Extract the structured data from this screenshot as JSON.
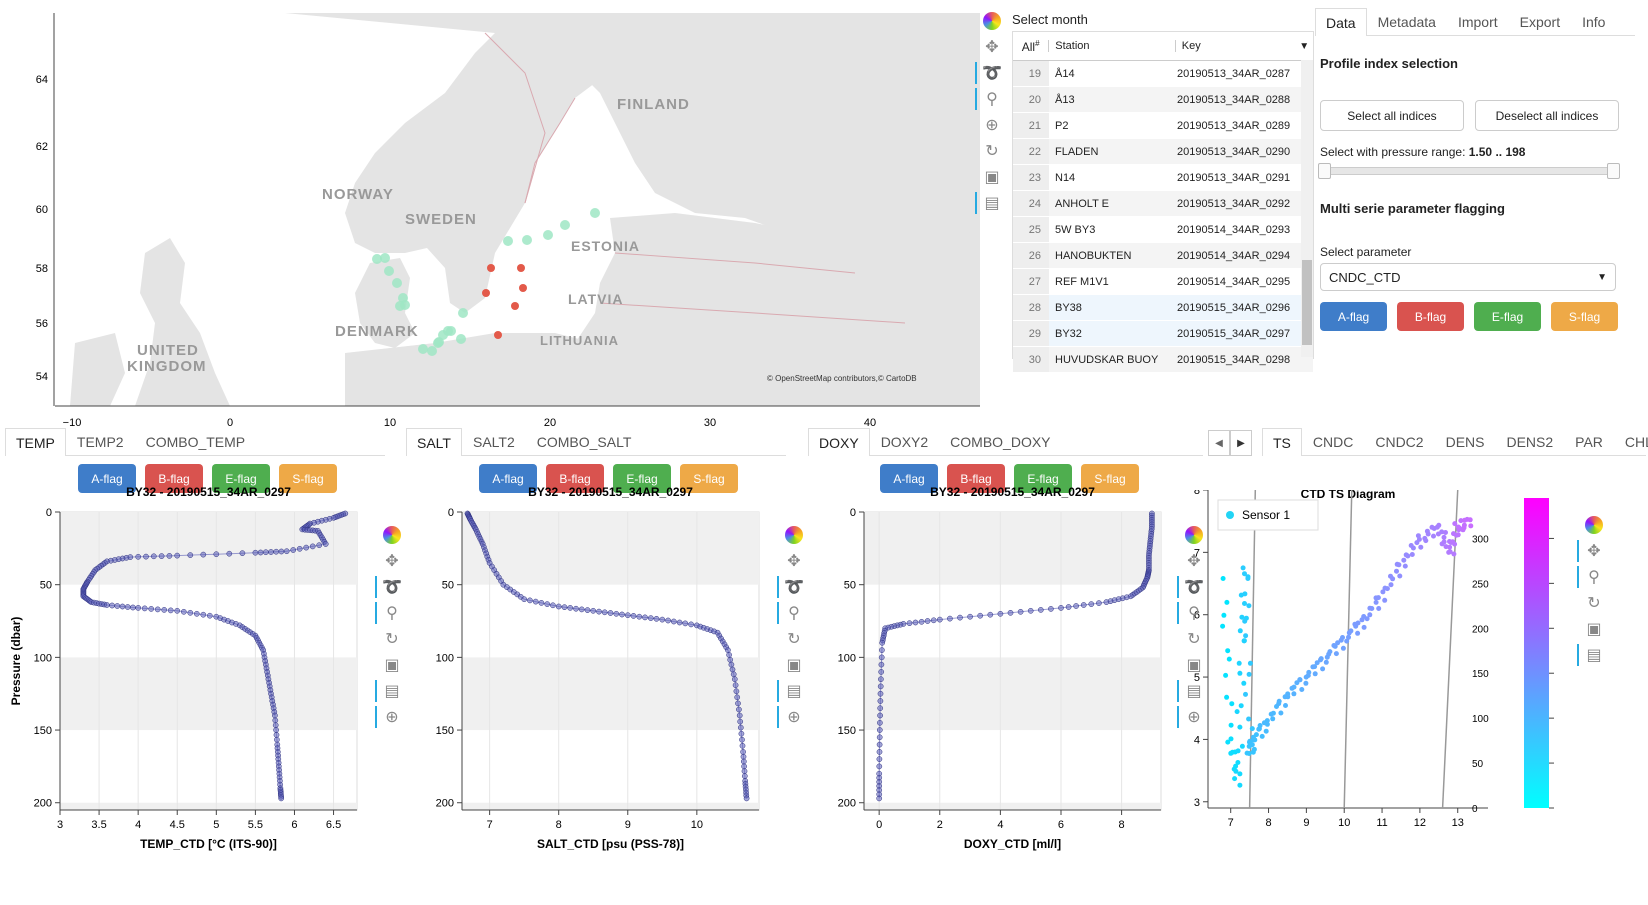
{
  "map": {
    "countries": [
      "FINLAND",
      "NORWAY",
      "SWEDEN",
      "ESTONIA",
      "LATVIA",
      "DENMARK",
      "LITHUANIA",
      "UNITED",
      "KINGDOM"
    ],
    "y_ticks": [
      "64",
      "62",
      "60",
      "58",
      "56",
      "54"
    ],
    "x_ticks": [
      "−10",
      "0",
      "10",
      "20",
      "30",
      "40"
    ],
    "attribution": "© OpenStreetMap contributors,© CartoDB",
    "land_color": "#e4e4e4",
    "sea_color": "#ffffff",
    "green_color": "#9fe6c4",
    "red_color": "#e35a4a"
  },
  "table": {
    "title": "Select month",
    "all_label": "All",
    "col_idx": "#",
    "col_station": "Station",
    "col_key": "Key",
    "rows": [
      {
        "idx": "19",
        "station": "Å14",
        "key": "20190513_34AR_0287"
      },
      {
        "idx": "20",
        "station": "Å13",
        "key": "20190513_34AR_0288"
      },
      {
        "idx": "21",
        "station": "P2",
        "key": "20190513_34AR_0289"
      },
      {
        "idx": "22",
        "station": "FLADEN",
        "key": "20190513_34AR_0290"
      },
      {
        "idx": "23",
        "station": "N14",
        "key": "20190513_34AR_0291"
      },
      {
        "idx": "24",
        "station": "ANHOLT E",
        "key": "20190513_34AR_0292"
      },
      {
        "idx": "25",
        "station": "5W BY3",
        "key": "20190514_34AR_0293"
      },
      {
        "idx": "26",
        "station": "HANOBUKTEN",
        "key": "20190514_34AR_0294"
      },
      {
        "idx": "27",
        "station": "REF M1V1",
        "key": "20190514_34AR_0295"
      },
      {
        "idx": "28",
        "station": "BY38",
        "key": "20190515_34AR_0296"
      },
      {
        "idx": "29",
        "station": "BY32",
        "key": "20190515_34AR_0297"
      },
      {
        "idx": "30",
        "station": "HUVUDSKAR BUOY",
        "key": "20190515_34AR_0298"
      }
    ]
  },
  "right_panel": {
    "tabs": [
      "Data",
      "Metadata",
      "Import",
      "Export",
      "Info"
    ],
    "profile_heading": "Profile index selection",
    "select_all": "Select all indices",
    "deselect_all": "Deselect all indices",
    "pressure_label": "Select with pressure range:",
    "pressure_value": "1.50 .. 198",
    "multi_heading": "Multi serie parameter flagging",
    "select_param_label": "Select parameter",
    "param_value": "CNDC_CTD",
    "flags": [
      "A-flag",
      "B-flag",
      "E-flag",
      "S-flag"
    ]
  },
  "plot_tabs": {
    "temp": [
      "TEMP",
      "TEMP2",
      "COMBO_TEMP"
    ],
    "salt": [
      "SALT",
      "SALT2",
      "COMBO_SALT"
    ],
    "doxy": [
      "DOXY",
      "DOXY2",
      "COMBO_DOXY"
    ],
    "ts": [
      "TS",
      "CNDC",
      "CNDC2",
      "DENS",
      "DENS2",
      "PAR",
      "CHL"
    ]
  },
  "flag_labels": [
    "A-flag",
    "B-flag",
    "E-flag",
    "S-flag"
  ],
  "plots": {
    "temp_title": "BY32 - 20190515_34AR_0297",
    "salt_title": "BY32 - 20190515_34AR_0297",
    "doxy_title": "BY32 - 20190515_34AR_0297",
    "ylabel": "Pressure (dbar)",
    "temp_xlabel": "TEMP_CTD [°C (ITS-90)]",
    "salt_xlabel": "SALT_CTD [psu (PSS-78)]",
    "doxy_xlabel": "DOXY_CTD [ml/l]",
    "ts_title": "CTD TS Diagram",
    "ts_legend": "Sensor 1",
    "point_color": "#5b5fb8"
  },
  "chart_data": [
    {
      "type": "scatter",
      "title": "BY32 - 20190515_34AR_0297",
      "xlabel": "TEMP_CTD [°C (ITS-90)]",
      "ylabel": "Pressure (dbar)",
      "xlim": [
        3,
        6.8
      ],
      "ylim": [
        200,
        0
      ],
      "x_ticks": [
        "3",
        "3.5",
        "4",
        "4.5",
        "5",
        "5.5",
        "6",
        "6.5"
      ],
      "y_ticks": [
        "0",
        "50",
        "100",
        "150",
        "200"
      ],
      "x": [
        6.65,
        6.5,
        6.2,
        6.1,
        6.3,
        6.4,
        5.9,
        5.5,
        4.5,
        3.9,
        3.6,
        3.45,
        3.35,
        3.3,
        3.3,
        3.4,
        3.6,
        4.0,
        4.5,
        5.0,
        5.3,
        5.5,
        5.6,
        5.65,
        5.7,
        5.75,
        5.78,
        5.8,
        5.82,
        5.83
      ],
      "y": [
        1,
        4,
        8,
        12,
        13,
        22,
        27,
        28,
        30,
        31,
        34,
        40,
        48,
        53,
        58,
        62,
        64,
        66,
        68,
        72,
        78,
        85,
        95,
        110,
        125,
        140,
        160,
        175,
        190,
        197
      ]
    },
    {
      "type": "scatter",
      "title": "BY32 - 20190515_34AR_0297",
      "xlabel": "SALT_CTD [psu (PSS-78)]",
      "ylabel": "Pressure (dbar)",
      "xlim": [
        6.6,
        10.9
      ],
      "ylim": [
        200,
        0
      ],
      "x_ticks": [
        "7",
        "8",
        "9",
        "10"
      ],
      "y_ticks": [
        "0",
        "50",
        "100",
        "150",
        "200"
      ],
      "x": [
        6.68,
        6.72,
        6.8,
        6.9,
        7.0,
        7.2,
        7.5,
        8.0,
        8.5,
        9.0,
        9.5,
        10.0,
        10.3,
        10.45,
        10.55,
        10.62,
        10.67,
        10.7,
        10.72
      ],
      "y": [
        1,
        5,
        12,
        22,
        35,
        50,
        60,
        65,
        68,
        71,
        74,
        78,
        83,
        95,
        115,
        140,
        165,
        185,
        197
      ]
    },
    {
      "type": "scatter",
      "title": "BY32 - 20190515_34AR_0297",
      "xlabel": "DOXY_CTD [ml/l]",
      "ylabel": "Pressure (dbar)",
      "xlim": [
        -0.5,
        9.3
      ],
      "ylim": [
        200,
        0
      ],
      "x_ticks": [
        "0",
        "2",
        "4",
        "6",
        "8"
      ],
      "y_ticks": [
        "0",
        "50",
        "100",
        "150",
        "200"
      ],
      "x": [
        9.0,
        9.0,
        8.95,
        8.9,
        8.9,
        8.85,
        8.7,
        8.3,
        7.5,
        6.0,
        4.0,
        2.0,
        0.8,
        0.2,
        0.1,
        0.05,
        0.02,
        0.0,
        0.0
      ],
      "y": [
        1,
        10,
        20,
        30,
        40,
        45,
        52,
        58,
        62,
        66,
        70,
        74,
        77,
        80,
        90,
        120,
        150,
        180,
        197
      ]
    },
    {
      "type": "scatter",
      "title": "CTD TS Diagram",
      "series": [
        {
          "name": "Sensor 1"
        }
      ],
      "xlim": [
        6.4,
        13.8
      ],
      "ylim": [
        2.9,
        8
      ],
      "x_ticks": [
        "7",
        "8",
        "9",
        "10",
        "11",
        "12",
        "13"
      ],
      "y_ticks": [
        "3",
        "4",
        "5",
        "6",
        "7",
        "8"
      ],
      "colorbar_ticks": [
        "0",
        "50",
        "100",
        "150",
        "200",
        "250",
        "300"
      ],
      "x": [
        6.8,
        7.0,
        7.2,
        7.3,
        7.4,
        7.5,
        7.6,
        8.0,
        8.5,
        9.0,
        9.5,
        10.0,
        10.5,
        11.0,
        11.5,
        12.0,
        12.5,
        12.8,
        13.0,
        13.3
      ],
      "y": [
        6.5,
        4.0,
        3.3,
        5.5,
        6.8,
        3.8,
        4.0,
        4.3,
        4.7,
        5.0,
        5.3,
        5.6,
        5.9,
        6.3,
        6.8,
        7.2,
        7.4,
        7.0,
        7.4,
        7.5
      ]
    }
  ]
}
